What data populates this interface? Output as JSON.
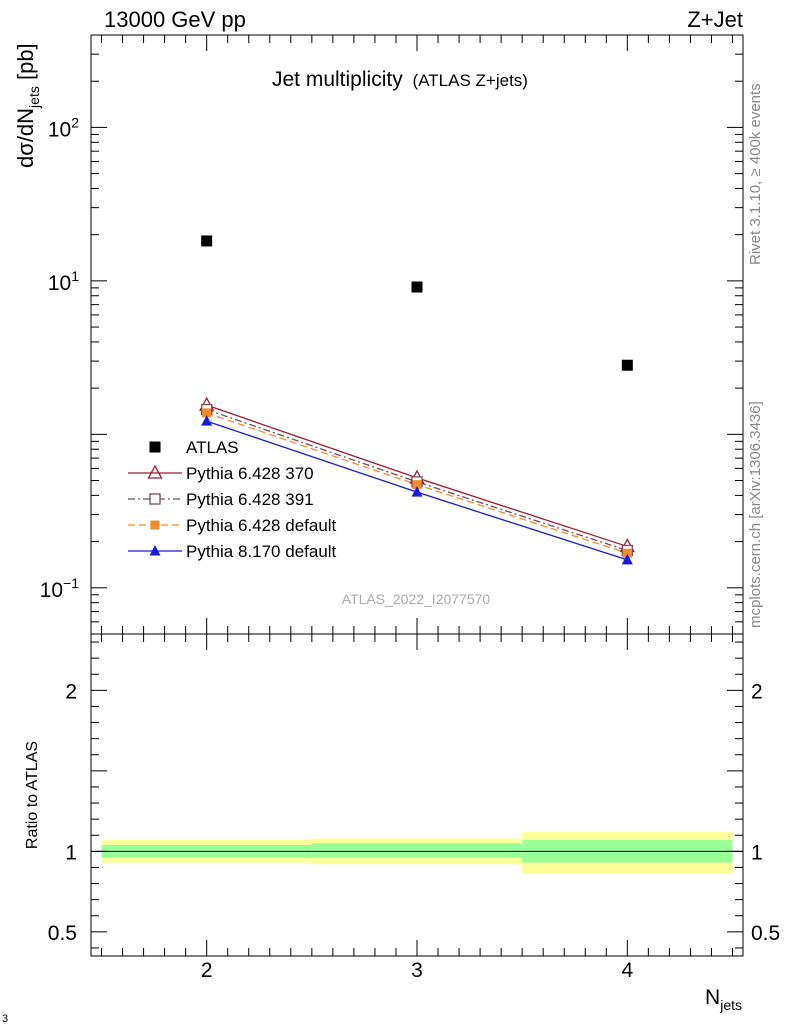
{
  "header": {
    "energy_label": "13000 GeV pp",
    "process_label": "Z+Jet"
  },
  "side": {
    "rivet_label": "Rivet 3.1.10, ≥ 400k events",
    "source_label": "mcplots.cern.ch [arXiv:1306.3436]"
  },
  "footer": {
    "corner_label": "3"
  },
  "chart_data": [
    {
      "type": "scatter",
      "title": "Jet multiplicity",
      "subtitle": "(ATLAS Z+jets)",
      "analysis_label": "ATLAS_2022_I2077570",
      "ylabel_main": "dσ/dN",
      "ylabel_sub": "jets",
      "ylabel_unit": " [pb]",
      "y_scale": "log",
      "ylim": [
        0.05,
        400
      ],
      "xlim": [
        1.45,
        4.55
      ],
      "yticks": [
        {
          "value": 0.1,
          "base": "10",
          "exp": "−1"
        },
        {
          "value": 10,
          "base": "10",
          "exp": "1"
        },
        {
          "value": 100,
          "base": "10",
          "exp": "2"
        }
      ],
      "legend_position": "lower-left",
      "series": [
        {
          "name": "ATLAS",
          "x": [
            2,
            3,
            4
          ],
          "y": [
            18.2,
            9.12,
            2.82
          ],
          "color": "#000000",
          "marker": "square-filled",
          "line": "none"
        },
        {
          "name": "Pythia 6.428 370",
          "x": [
            2,
            3,
            4
          ],
          "y": [
            1.55,
            0.52,
            0.186
          ],
          "color": "#9b1b30",
          "marker": "triangle-open",
          "line": "solid"
        },
        {
          "name": "Pythia 6.428 391",
          "x": [
            2,
            3,
            4
          ],
          "y": [
            1.45,
            0.49,
            0.175
          ],
          "color": "#7a4a5a",
          "marker": "square-open",
          "line": "dashdot"
        },
        {
          "name": "Pythia 6.428 default",
          "x": [
            2,
            3,
            4
          ],
          "y": [
            1.38,
            0.47,
            0.168
          ],
          "color": "#f28c28",
          "marker": "square-filled",
          "line": "dashed"
        },
        {
          "name": "Pythia 8.170 default",
          "x": [
            2,
            3,
            4
          ],
          "y": [
            1.22,
            0.42,
            0.152
          ],
          "color": "#1a1adb",
          "marker": "triangle-filled",
          "line": "solid"
        }
      ]
    },
    {
      "type": "area",
      "ylabel": "Ratio to ATLAS",
      "xlabel_main": "N",
      "xlabel_sub": "jets",
      "ylim": [
        0.35,
        2.35
      ],
      "xlim": [
        1.45,
        4.55
      ],
      "xticks": [
        2,
        3,
        4
      ],
      "yticks": [
        0.5,
        1,
        2
      ],
      "reference_line": 1,
      "bands": [
        {
          "xmin": 1.5,
          "xmax": 2.5,
          "stat_low": 0.96,
          "stat_high": 1.04,
          "total_low": 0.93,
          "total_high": 1.07
        },
        {
          "xmin": 2.5,
          "xmax": 3.5,
          "stat_low": 0.96,
          "stat_high": 1.05,
          "total_low": 0.92,
          "total_high": 1.08
        },
        {
          "xmin": 3.5,
          "xmax": 4.5,
          "stat_low": 0.93,
          "stat_high": 1.07,
          "total_low": 0.86,
          "total_high": 1.12
        }
      ],
      "colors": {
        "stat_band": "#99ff99",
        "total_band": "#ffff99"
      }
    }
  ]
}
